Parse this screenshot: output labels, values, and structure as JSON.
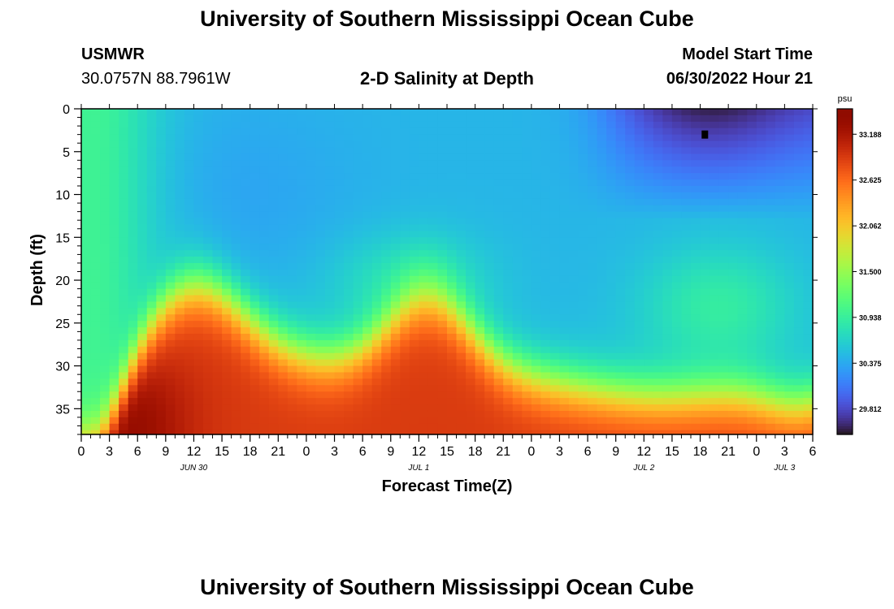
{
  "header": {
    "title": "University of Southern Mississippi Ocean Cube",
    "station_id": "USMWR",
    "coordinates": "30.0757N  88.7961W",
    "subtitle": "2-D Salinity at Depth",
    "model_start_label": "Model Start Time",
    "model_start_value": "06/30/2022 Hour 21"
  },
  "footer": {
    "title": "University of Southern Mississippi Ocean Cube"
  },
  "chart_data": {
    "type": "heatmap",
    "title": "2-D Salinity at Depth",
    "xlabel": "Forecast Time(Z)",
    "ylabel": "Depth (ft)",
    "x_range_hours": [
      0,
      78
    ],
    "y_range_ft": [
      0,
      38
    ],
    "x_tick_labels": [
      "0",
      "3",
      "6",
      "9",
      "12",
      "15",
      "18",
      "21",
      "0",
      "3",
      "6",
      "9",
      "12",
      "15",
      "18",
      "21",
      "0",
      "3",
      "6",
      "9",
      "12",
      "15",
      "18",
      "21",
      "0",
      "3",
      "6"
    ],
    "y_ticks": [
      0,
      5,
      10,
      15,
      20,
      25,
      30,
      35
    ],
    "date_labels": [
      {
        "label": "JUN 30",
        "hour": 12
      },
      {
        "label": "JUL 1",
        "hour": 36
      },
      {
        "label": "JUL 2",
        "hour": 60
      },
      {
        "label": "JUL 3",
        "hour": 75
      }
    ],
    "colorbar": {
      "unit": "psu",
      "range": [
        29.5,
        33.5
      ],
      "ticks": [
        33.188,
        32.625,
        32.062,
        31.5,
        30.938,
        30.375,
        29.812
      ],
      "colormap": "turbo"
    },
    "marker": {
      "hour": 66.5,
      "depth_ft": 3
    },
    "grid": false,
    "legend": "colorbar-right"
  }
}
